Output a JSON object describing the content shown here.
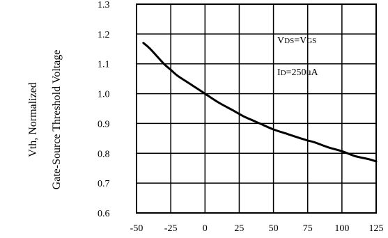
{
  "chart_data": {
    "type": "line",
    "title": "",
    "ylabel_line1": "Vth, Normalized",
    "ylabel_line2": "Gate-Source Threshold Voltage",
    "xlabel": "",
    "xlim": [
      -50,
      125
    ],
    "ylim": [
      0.6,
      1.3
    ],
    "x_ticks": [
      "-50",
      "-25",
      "0",
      "25",
      "50",
      "75",
      "100",
      "125"
    ],
    "y_ticks": [
      "0.6",
      "0.7",
      "0.8",
      "0.9",
      "1.0",
      "1.1",
      "1.2",
      "1.3"
    ],
    "grid": true,
    "annotations": [
      {
        "main": "V",
        "sub": "DS",
        "main2": "=V",
        "sub2": "GS"
      },
      {
        "main": "I",
        "sub": "D",
        "main2": "=250uA",
        "sub2": ""
      }
    ],
    "series": [
      {
        "x": [
          -45,
          -40,
          -30,
          -25,
          -20,
          -10,
          0,
          10,
          20,
          25,
          30,
          40,
          50,
          60,
          70,
          75,
          80,
          90,
          100,
          110,
          120,
          125
        ],
        "y": [
          1.17,
          1.15,
          1.1,
          1.08,
          1.06,
          1.03,
          1.0,
          0.97,
          0.945,
          0.932,
          0.92,
          0.9,
          0.88,
          0.865,
          0.85,
          0.843,
          0.837,
          0.82,
          0.807,
          0.79,
          0.78,
          0.773
        ]
      }
    ]
  }
}
